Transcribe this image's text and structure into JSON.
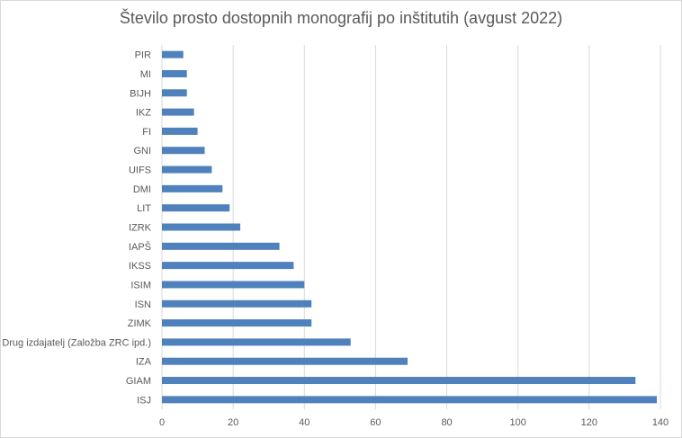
{
  "chart_data": {
    "type": "bar",
    "orientation": "horizontal",
    "title": "Število prosto dostopnih monografij po inštitutih (avgust 2022)",
    "categories": [
      "PIR",
      "MI",
      "BIJH",
      "IKZ",
      "FI",
      "GNI",
      "UIFS",
      "DMI",
      "LIT",
      "IZRK",
      "IAPŠ",
      "IKSS",
      "ISIM",
      "ISN",
      "ZIMK",
      "Drug izdajatelj (Založba ZRC ipd.)",
      "IZA",
      "GIAM",
      "ISJ"
    ],
    "values": [
      6,
      7,
      7,
      9,
      10,
      12,
      14,
      17,
      19,
      22,
      33,
      37,
      40,
      42,
      42,
      53,
      69,
      133,
      139
    ],
    "xlim": [
      0,
      140
    ],
    "xticks": [
      0,
      20,
      40,
      60,
      80,
      100,
      120,
      140
    ],
    "grid": true,
    "colors": {
      "bar": "#4f81bd",
      "grid": "#d9d9d9",
      "text": "#595959"
    }
  }
}
